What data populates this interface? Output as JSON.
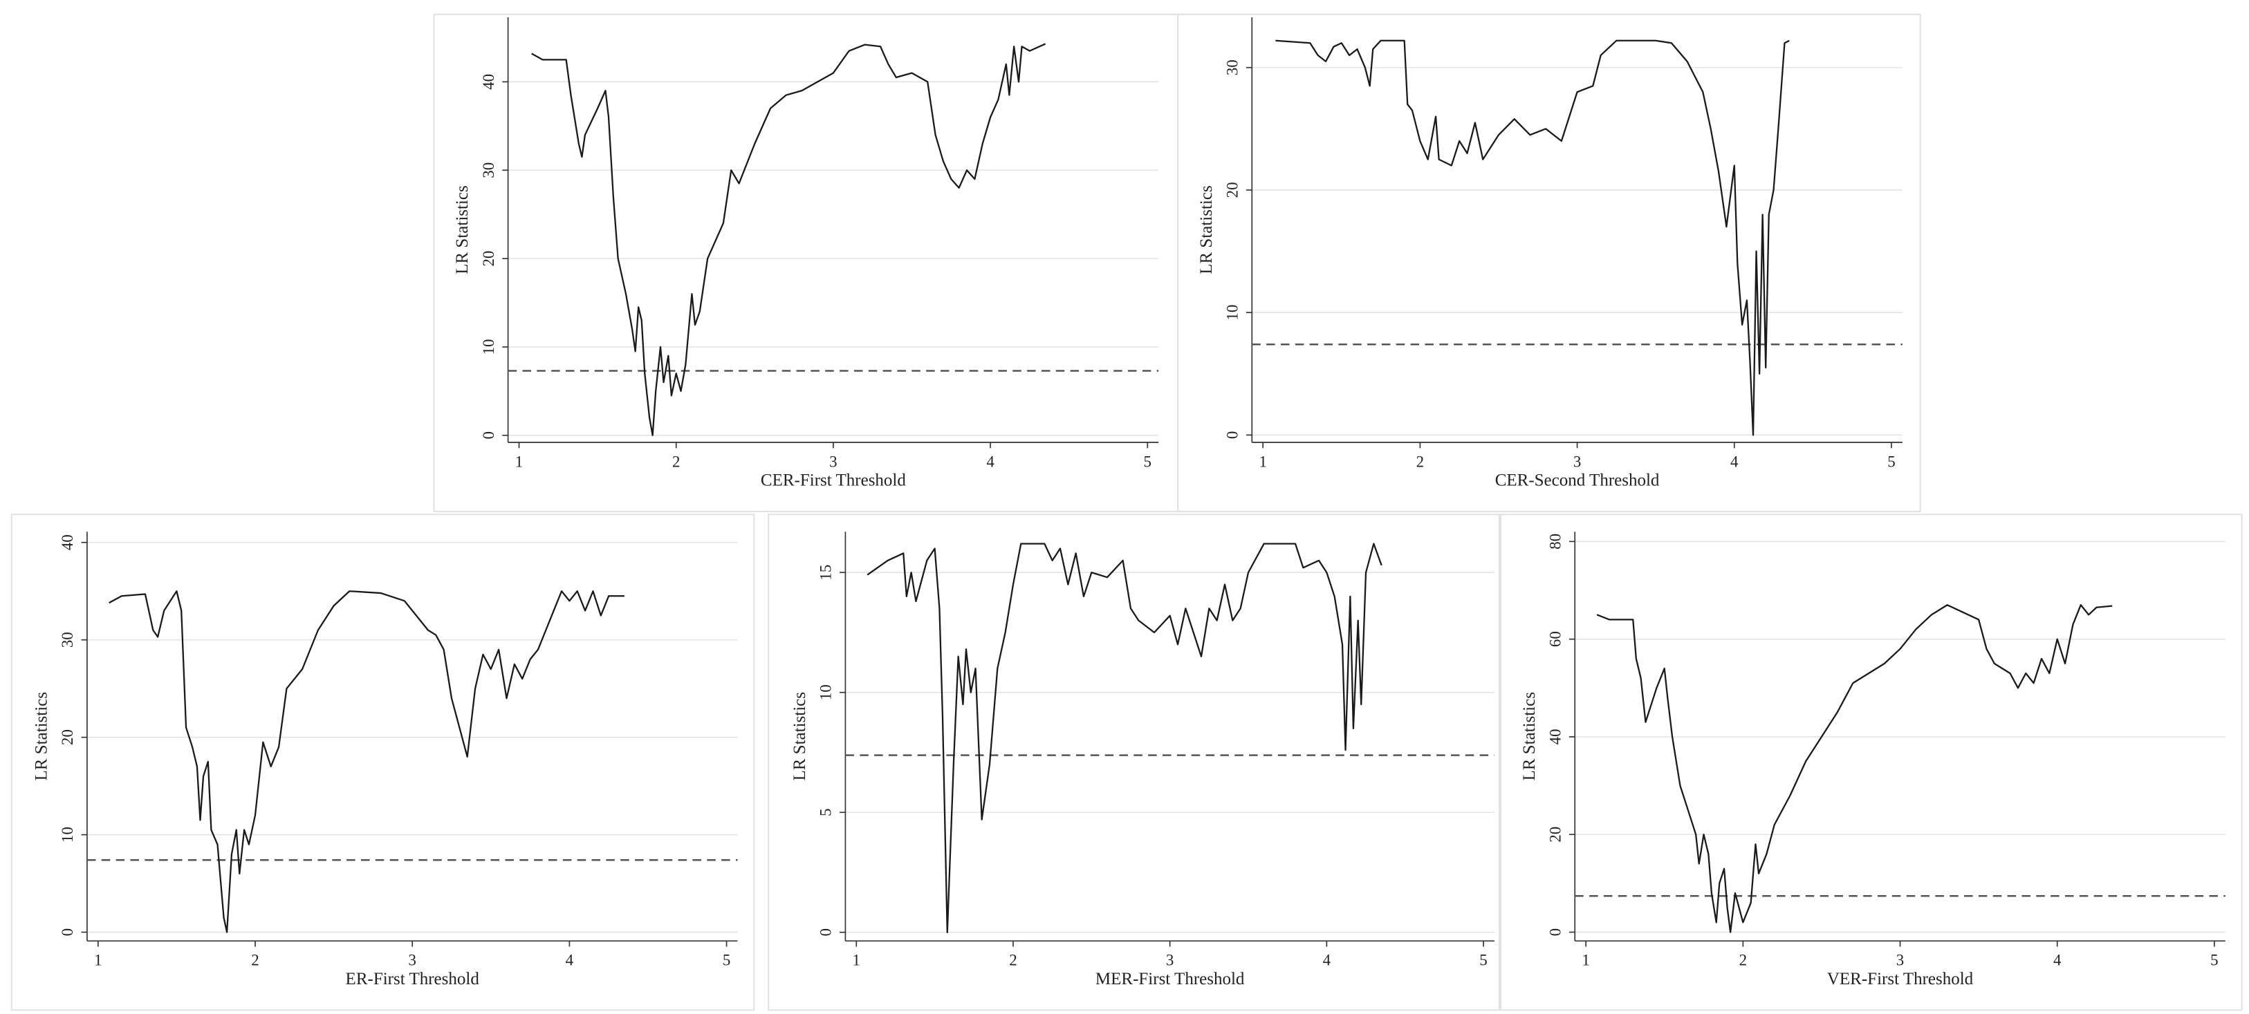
{
  "chart_data": [
    {
      "type": "line",
      "xlabel": "CER-First Threshold",
      "ylabel": "LR Statistics",
      "xlim": [
        0.93,
        5.07
      ],
      "ylim": [
        -0.8,
        47.3
      ],
      "xticks": [
        1,
        2,
        3,
        4,
        5
      ],
      "yticks": [
        0,
        10,
        20,
        30,
        40
      ],
      "grid": true,
      "color": "#1a1a1a",
      "reference_line": 7.3,
      "reference_color": "#555555",
      "x": [
        1.08,
        1.15,
        1.3,
        1.33,
        1.38,
        1.4,
        1.42,
        1.5,
        1.55,
        1.57,
        1.6,
        1.63,
        1.68,
        1.72,
        1.74,
        1.76,
        1.78,
        1.8,
        1.83,
        1.85,
        1.87,
        1.9,
        1.92,
        1.95,
        1.97,
        2.0,
        2.03,
        2.06,
        2.1,
        2.12,
        2.15,
        2.2,
        2.3,
        2.35,
        2.4,
        2.5,
        2.6,
        2.7,
        2.8,
        2.9,
        3.0,
        3.1,
        3.2,
        3.3,
        3.35,
        3.4,
        3.5,
        3.6,
        3.65,
        3.7,
        3.75,
        3.8,
        3.85,
        3.9,
        3.95,
        4.0,
        4.05,
        4.1,
        4.12,
        4.15,
        4.18,
        4.2,
        4.25,
        4.35
      ],
      "values": [
        43.2,
        42.5,
        42.5,
        38.5,
        33,
        31.5,
        34,
        37,
        39,
        36,
        27,
        20,
        16,
        12,
        9.5,
        14.5,
        13,
        7,
        2,
        0,
        5,
        10,
        6,
        9,
        4.5,
        7,
        5,
        8,
        16,
        12.5,
        14,
        20,
        24,
        30,
        28.5,
        33,
        37,
        38.5,
        39,
        40,
        41,
        43.5,
        44.2,
        44,
        42,
        40.5,
        41,
        40,
        34,
        31,
        29,
        28,
        30,
        29,
        33,
        36,
        38,
        42,
        38.5,
        44,
        40,
        44,
        43.5,
        44.3
      ]
    },
    {
      "type": "line",
      "xlabel": "CER-Second Threshold",
      "ylabel": "LR Statistics",
      "xlim": [
        0.93,
        5.07
      ],
      "ylim": [
        -0.6,
        34.1
      ],
      "xticks": [
        1,
        2,
        3,
        4,
        5
      ],
      "yticks": [
        0,
        10,
        20,
        30
      ],
      "grid": true,
      "color": "#1a1a1a",
      "reference_line": 7.4,
      "reference_color": "#555555",
      "x": [
        1.08,
        1.3,
        1.35,
        1.4,
        1.45,
        1.5,
        1.55,
        1.6,
        1.65,
        1.68,
        1.7,
        1.75,
        1.9,
        1.92,
        1.95,
        2.0,
        2.05,
        2.1,
        2.12,
        2.2,
        2.25,
        2.3,
        2.35,
        2.4,
        2.5,
        2.6,
        2.7,
        2.8,
        2.9,
        2.95,
        3.0,
        3.1,
        3.15,
        3.25,
        3.5,
        3.6,
        3.7,
        3.8,
        3.85,
        3.9,
        3.95,
        3.97,
        4.0,
        4.02,
        4.05,
        4.08,
        4.1,
        4.12,
        4.14,
        4.16,
        4.18,
        4.2,
        4.22,
        4.25,
        4.28,
        4.32,
        4.35
      ],
      "values": [
        32.2,
        32,
        31,
        30.5,
        31.7,
        32,
        31,
        31.5,
        30,
        28.5,
        31.5,
        32.2,
        32.2,
        27,
        26.5,
        24,
        22.5,
        26,
        22.5,
        22,
        24,
        23,
        25.5,
        22.5,
        24.5,
        25.8,
        24.5,
        25,
        24,
        26,
        28,
        28.5,
        31,
        32.2,
        32.2,
        32,
        30.5,
        28,
        25,
        21.5,
        17,
        19,
        22,
        14,
        9,
        11,
        6,
        0,
        15,
        5,
        18,
        5.5,
        18,
        20,
        25,
        32,
        32.2
      ]
    },
    {
      "type": "line",
      "xlabel": "ER-First Threshold",
      "ylabel": "LR Statistics",
      "xlim": [
        0.93,
        5.07
      ],
      "ylim": [
        -0.9,
        41.1
      ],
      "xticks": [
        1,
        2,
        3,
        4,
        5
      ],
      "yticks": [
        0,
        10,
        20,
        30,
        40
      ],
      "grid": true,
      "color": "#1a1a1a",
      "reference_line": 7.4,
      "reference_color": "#555555",
      "x": [
        1.07,
        1.15,
        1.3,
        1.35,
        1.38,
        1.42,
        1.5,
        1.53,
        1.56,
        1.6,
        1.63,
        1.65,
        1.67,
        1.7,
        1.72,
        1.76,
        1.8,
        1.82,
        1.85,
        1.88,
        1.9,
        1.93,
        1.96,
        2.0,
        2.05,
        2.1,
        2.15,
        2.2,
        2.3,
        2.4,
        2.5,
        2.6,
        2.8,
        2.95,
        3.1,
        3.15,
        3.2,
        3.25,
        3.3,
        3.35,
        3.4,
        3.45,
        3.5,
        3.55,
        3.6,
        3.65,
        3.7,
        3.75,
        3.8,
        3.85,
        3.9,
        3.95,
        4.0,
        4.05,
        4.1,
        4.15,
        4.2,
        4.25,
        4.3,
        4.35
      ],
      "values": [
        33.8,
        34.5,
        34.7,
        31,
        30.3,
        33,
        35,
        33,
        21,
        19,
        17,
        11.5,
        16,
        17.5,
        10.5,
        9,
        1.5,
        0,
        8,
        10.5,
        6,
        10.5,
        9,
        12,
        19.5,
        17,
        19,
        25,
        27,
        31,
        33.5,
        35,
        34.8,
        34,
        31,
        30.5,
        29,
        24,
        21,
        18,
        25,
        28.5,
        27,
        29,
        24,
        27.5,
        26,
        28,
        29,
        31,
        33,
        35,
        34,
        35,
        33,
        35,
        32.5,
        34.5,
        34.5,
        34.5
      ]
    },
    {
      "type": "line",
      "xlabel": "MER-First Threshold",
      "ylabel": "LR Statistics",
      "xlim": [
        0.93,
        5.07
      ],
      "ylim": [
        -0.36,
        16.7
      ],
      "xticks": [
        1,
        2,
        3,
        4,
        5
      ],
      "yticks": [
        0,
        5,
        10,
        15
      ],
      "grid": true,
      "color": "#1a1a1a",
      "reference_line": 7.38,
      "reference_color": "#555555",
      "x": [
        1.07,
        1.2,
        1.3,
        1.32,
        1.35,
        1.38,
        1.45,
        1.5,
        1.53,
        1.55,
        1.58,
        1.62,
        1.65,
        1.68,
        1.7,
        1.73,
        1.76,
        1.8,
        1.85,
        1.9,
        1.95,
        2.0,
        2.05,
        2.2,
        2.25,
        2.3,
        2.35,
        2.4,
        2.45,
        2.5,
        2.6,
        2.7,
        2.75,
        2.8,
        2.9,
        3.0,
        3.05,
        3.1,
        3.15,
        3.2,
        3.25,
        3.3,
        3.35,
        3.4,
        3.45,
        3.5,
        3.6,
        3.8,
        3.85,
        3.95,
        4.0,
        4.05,
        4.1,
        4.12,
        4.15,
        4.17,
        4.2,
        4.22,
        4.25,
        4.3,
        4.35
      ],
      "values": [
        14.9,
        15.5,
        15.8,
        14,
        15,
        13.8,
        15.5,
        16,
        13.5,
        9,
        0,
        7,
        11.5,
        9.5,
        11.8,
        10,
        11,
        4.7,
        7,
        11,
        12.5,
        14.5,
        16.2,
        16.2,
        15.5,
        16,
        14.5,
        15.8,
        14,
        15,
        14.8,
        15.5,
        13.5,
        13,
        12.5,
        13.2,
        12,
        13.5,
        12.5,
        11.5,
        13.5,
        13,
        14.5,
        13,
        13.5,
        15,
        16.2,
        16.2,
        15.2,
        15.5,
        15,
        14,
        12,
        7.6,
        14,
        8.5,
        13,
        9.5,
        15,
        16.2,
        15.3
      ]
    },
    {
      "type": "line",
      "xlabel": "VER-First Threshold",
      "ylabel": "LR Statistics",
      "xlim": [
        0.93,
        5.07
      ],
      "ylim": [
        -1.8,
        82
      ],
      "xticks": [
        1,
        2,
        3,
        4,
        5
      ],
      "yticks": [
        0,
        20,
        40,
        60,
        80
      ],
      "grid": true,
      "color": "#1a1a1a",
      "reference_line": 7.4,
      "reference_color": "#555555",
      "x": [
        1.07,
        1.15,
        1.3,
        1.32,
        1.35,
        1.38,
        1.45,
        1.5,
        1.52,
        1.55,
        1.6,
        1.65,
        1.7,
        1.72,
        1.75,
        1.78,
        1.8,
        1.83,
        1.85,
        1.88,
        1.9,
        1.92,
        1.95,
        2.0,
        2.05,
        2.08,
        2.1,
        2.15,
        2.2,
        2.3,
        2.4,
        2.5,
        2.6,
        2.7,
        2.8,
        2.9,
        3.0,
        3.1,
        3.2,
        3.3,
        3.4,
        3.5,
        3.55,
        3.6,
        3.7,
        3.75,
        3.8,
        3.85,
        3.9,
        3.95,
        4.0,
        4.05,
        4.1,
        4.15,
        4.2,
        4.25,
        4.35
      ],
      "values": [
        65,
        64,
        64,
        56,
        52,
        43,
        50,
        54,
        48,
        40,
        30,
        25,
        20,
        14,
        20,
        16,
        8,
        2,
        10,
        13,
        5,
        0,
        8,
        2,
        6,
        18,
        12,
        16,
        22,
        28,
        35,
        40,
        45,
        51,
        53,
        55,
        58,
        62,
        65,
        67,
        65.5,
        64,
        58,
        55,
        53,
        50,
        53,
        51,
        56,
        53,
        60,
        55,
        63,
        67,
        65,
        66.5,
        66.8
      ]
    }
  ]
}
